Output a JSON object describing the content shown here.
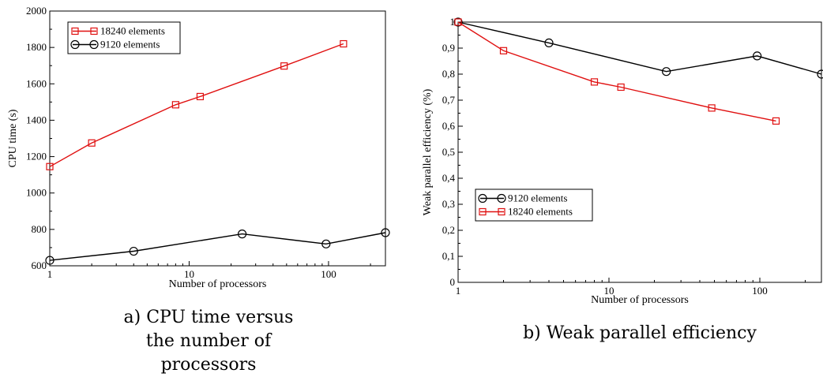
{
  "colors": {
    "red": "#e01010",
    "black": "#000000"
  },
  "captions": {
    "a": "a) CPU time versus the number of processors",
    "b": "b) Weak parallel efficiency"
  },
  "chart_data": [
    {
      "type": "line",
      "xlabel": "Number of processors",
      "ylabel": "CPU time (s)",
      "xscale": "log",
      "xlim": [
        1,
        256
      ],
      "ylim": [
        600,
        2000
      ],
      "xticks": [
        {
          "v": 1,
          "label": "1"
        },
        {
          "v": 10,
          "label": "10"
        },
        {
          "v": 100,
          "label": "100"
        }
      ],
      "yticks": [
        {
          "v": 600,
          "label": "600"
        },
        {
          "v": 800,
          "label": "800"
        },
        {
          "v": 1000,
          "label": "1000"
        },
        {
          "v": 1200,
          "label": "1200"
        },
        {
          "v": 1400,
          "label": "1400"
        },
        {
          "v": 1600,
          "label": "1600"
        },
        {
          "v": 1800,
          "label": "1800"
        },
        {
          "v": 2000,
          "label": "2000"
        }
      ],
      "legend_position": "top-left",
      "series": [
        {
          "name": "18240 elements",
          "color": "#e01010",
          "marker": "square",
          "x": [
            1,
            2,
            8,
            12,
            48,
            128
          ],
          "y": [
            1145,
            1275,
            1485,
            1530,
            1698,
            1820
          ]
        },
        {
          "name": "9120 elements",
          "color": "#000000",
          "marker": "circle",
          "x": [
            1,
            4,
            24,
            96,
            256
          ],
          "y": [
            630,
            680,
            775,
            720,
            782
          ]
        }
      ]
    },
    {
      "type": "line",
      "xlabel": "Number of processors",
      "ylabel": "Weak parallel efficiency (%)",
      "xscale": "log",
      "xlim": [
        1,
        256
      ],
      "ylim": [
        0,
        1
      ],
      "reference_line": 1,
      "xticks": [
        {
          "v": 1,
          "label": "1"
        },
        {
          "v": 10,
          "label": "10"
        },
        {
          "v": 100,
          "label": "100"
        }
      ],
      "yticks": [
        {
          "v": 0,
          "label": "0"
        },
        {
          "v": 0.1,
          "label": "0,1"
        },
        {
          "v": 0.2,
          "label": "0,2"
        },
        {
          "v": 0.3,
          "label": "0,3"
        },
        {
          "v": 0.4,
          "label": "0,4"
        },
        {
          "v": 0.5,
          "label": "0,5"
        },
        {
          "v": 0.6,
          "label": "0,6"
        },
        {
          "v": 0.7,
          "label": "0,7"
        },
        {
          "v": 0.8,
          "label": "0,8"
        },
        {
          "v": 0.9,
          "label": "0,9"
        },
        {
          "v": 1,
          "label": "1"
        }
      ],
      "legend_position": "lower-left",
      "series": [
        {
          "name": "9120 elements",
          "color": "#000000",
          "marker": "circle",
          "x": [
            1,
            4,
            24,
            96,
            256
          ],
          "y": [
            1,
            0.92,
            0.81,
            0.87,
            0.8
          ]
        },
        {
          "name": "18240 elements",
          "color": "#e01010",
          "marker": "square",
          "x": [
            1,
            2,
            8,
            12,
            48,
            128
          ],
          "y": [
            1,
            0.89,
            0.77,
            0.75,
            0.67,
            0.62
          ]
        }
      ]
    }
  ]
}
